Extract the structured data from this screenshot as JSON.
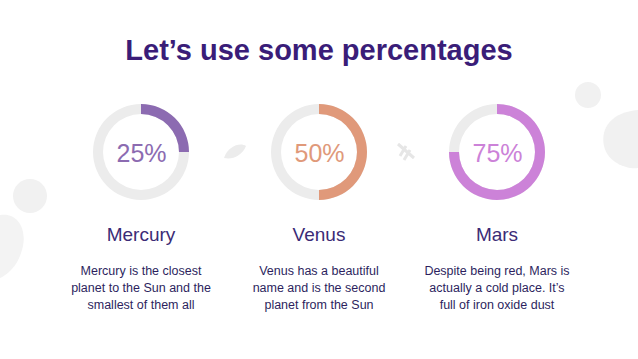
{
  "title": "Let’s use some percentages",
  "chart_data": [
    {
      "type": "donut",
      "title": "Mercury",
      "values": [
        25
      ],
      "value_labels": [
        "25%"
      ],
      "data_labels": true,
      "ylim": [
        0,
        100
      ],
      "color": "#8c6bb1",
      "caption": "Mercury is the closest planet to the Sun and the smallest of them all"
    },
    {
      "type": "donut",
      "title": "Venus",
      "values": [
        50
      ],
      "value_labels": [
        "50%"
      ],
      "data_labels": true,
      "ylim": [
        0,
        100
      ],
      "color": "#e0997a",
      "caption": "Venus has a beautiful name and is the second planet from the Sun"
    },
    {
      "type": "donut",
      "title": "Mars",
      "values": [
        75
      ],
      "value_labels": [
        "75%"
      ],
      "data_labels": true,
      "ylim": [
        0,
        100
      ],
      "color": "#cc82d8",
      "caption": "Despite being red, Mars is actually a cold place. It’s full of iron oxide dust"
    }
  ]
}
